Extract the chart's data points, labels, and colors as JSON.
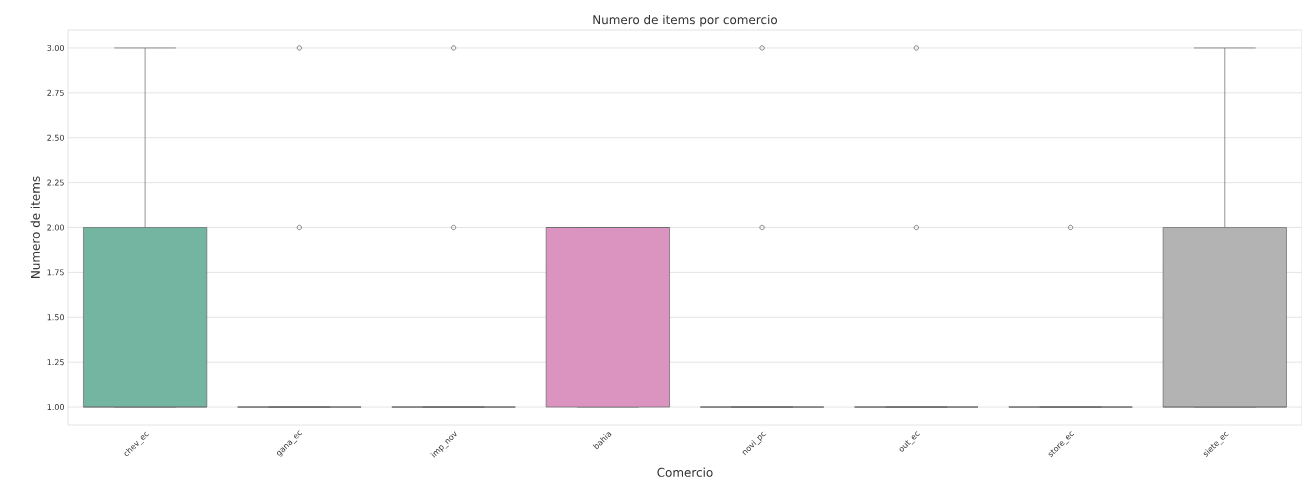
{
  "chart_data": {
    "type": "box",
    "title": "Numero de items por comercio",
    "xlabel": "Comercio",
    "ylabel": "Numero de items",
    "categories": [
      "chev_ec",
      "gana_ec",
      "imp_nov",
      "bahia",
      "novi_pc",
      "out_ec",
      "store_ec",
      "siete_ec"
    ],
    "colors": [
      "#73b5a0",
      "#666666",
      "#666666",
      "#db94c0",
      "#666666",
      "#666666",
      "#666666",
      "#b3b3b3"
    ],
    "boxes": [
      {
        "low": 1,
        "q1": 1,
        "median": 1,
        "q3": 2,
        "high": 3
      },
      {
        "low": 1,
        "q1": 1,
        "median": 1,
        "q3": 1,
        "high": 1,
        "outliers": [
          2,
          3
        ]
      },
      {
        "low": 1,
        "q1": 1,
        "median": 1,
        "q3": 1,
        "high": 1,
        "outliers": [
          2,
          3
        ]
      },
      {
        "low": 1,
        "q1": 1,
        "median": 2,
        "q3": 2,
        "high": 2
      },
      {
        "low": 1,
        "q1": 1,
        "median": 1,
        "q3": 1,
        "high": 1,
        "outliers": [
          2,
          3
        ]
      },
      {
        "low": 1,
        "q1": 1,
        "median": 1,
        "q3": 1,
        "high": 1,
        "outliers": [
          2,
          3
        ]
      },
      {
        "low": 1,
        "q1": 1,
        "median": 1,
        "q3": 1,
        "high": 1,
        "outliers": [
          2
        ]
      },
      {
        "low": 1,
        "q1": 1,
        "median": 1,
        "q3": 2,
        "high": 3
      }
    ],
    "ylim": [
      0.9,
      3.1
    ],
    "yticks": [
      {
        "value": 1,
        "label": "1.00"
      },
      {
        "value": 1.25,
        "label": "1.25"
      },
      {
        "value": 1.5,
        "label": "1.50"
      },
      {
        "value": 1.75,
        "label": "1.75"
      },
      {
        "value": 2,
        "label": "2.00"
      },
      {
        "value": 2.25,
        "label": "2.25"
      },
      {
        "value": 2.5,
        "label": "2.50"
      },
      {
        "value": 2.75,
        "label": "2.75"
      },
      {
        "value": 3,
        "label": "3.00"
      }
    ],
    "grid": "y",
    "marker": "circle"
  }
}
